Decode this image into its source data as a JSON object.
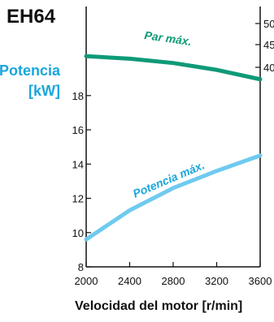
{
  "chart_data": {
    "type": "line",
    "model_label": "EH64",
    "left_axis_label_line1": "Potencia",
    "left_axis_label_line2": "[kW]",
    "xlabel": "Velocidad del motor [r/min]",
    "x_ticks": [
      2000,
      2400,
      2800,
      3200,
      3600
    ],
    "xlim": [
      2000,
      3600
    ],
    "left_y_ticks": [
      8,
      10,
      12,
      14,
      16,
      18
    ],
    "left_ylim": [
      8,
      23.2
    ],
    "right_y_ticks_visible": [
      "50",
      "45",
      "40"
    ],
    "series": [
      {
        "name": "Par máx.",
        "color": "#0f9a78",
        "axis": "right",
        "x": [
          2000,
          2400,
          2800,
          3200,
          3600
        ],
        "y_left_equiv": [
          20.3,
          20.15,
          19.9,
          19.5,
          18.95
        ]
      },
      {
        "name": "Potencia máx.",
        "color": "#6fcaf0",
        "axis": "left",
        "x": [
          2000,
          2400,
          2800,
          3200,
          3600
        ],
        "y": [
          9.6,
          11.3,
          12.6,
          13.6,
          14.5
        ]
      }
    ],
    "label_colors": {
      "model": "#111111",
      "power_axis": "#19a6dc",
      "torque_series": "#0f9a78",
      "power_series": "#19a6dc"
    },
    "grid": false
  }
}
